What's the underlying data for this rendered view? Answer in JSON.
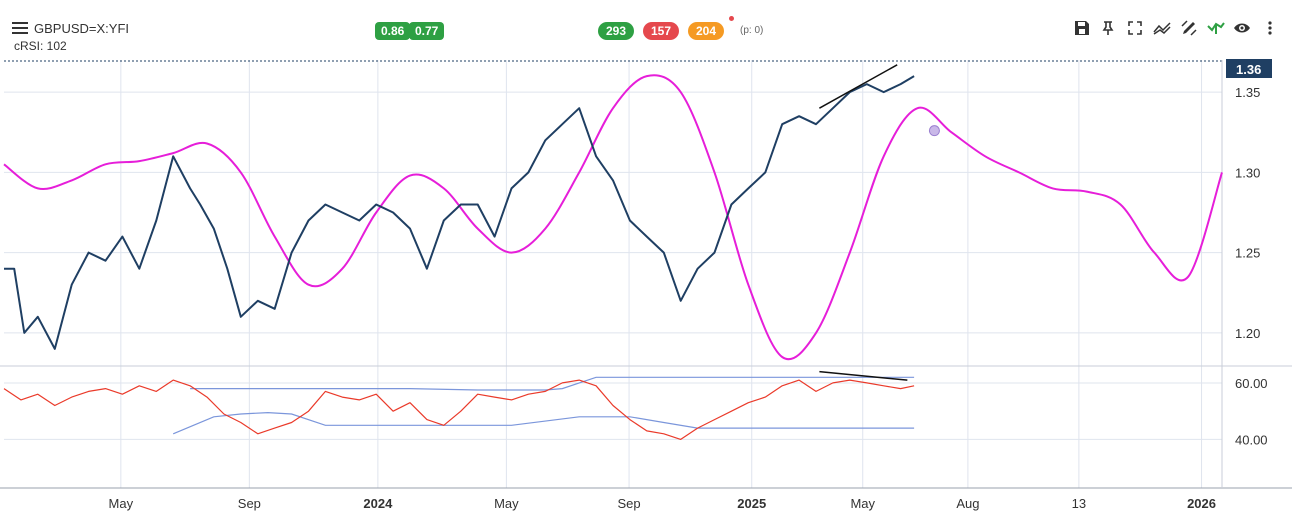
{
  "header": {
    "symbol": "GBPUSD=X:YFI",
    "indicator": "cRSI: 102",
    "badges_left": [
      "0.86",
      "0.77"
    ],
    "badges_mid": [
      "293",
      "157",
      "204"
    ],
    "p_label": "(p: 0)"
  },
  "toolbar": {
    "icons": [
      "save-icon",
      "pin-icon",
      "fullscreen-icon",
      "trend-icon",
      "draw-icon",
      "signal-icon",
      "eye-icon",
      "more-icon"
    ]
  },
  "colors": {
    "price": "#1f3f63",
    "cycle": "#e61ed9",
    "rsi": "#ea3a2a",
    "band": "#7b96db",
    "price_badge": "#1f3f63"
  },
  "chart_data": [
    {
      "type": "line",
      "title": "",
      "last_price_label": "1.36",
      "y_ticks": [
        1.35,
        1.3,
        1.25,
        1.2
      ],
      "y_tick_labels": [
        "1.35",
        "1.30",
        "1.25",
        "1.20"
      ],
      "ylim": [
        1.18,
        1.37
      ],
      "x_labels": [
        "May",
        "Sep",
        "2024",
        "May",
        "Sep",
        "2025",
        "May",
        "Aug",
        "13",
        "2026"
      ],
      "x_labels_bold": [
        false,
        false,
        true,
        false,
        false,
        true,
        false,
        false,
        false,
        true
      ],
      "series": [
        {
          "kind": "price",
          "x": [
            0,
            0.3,
            0.6,
            1.0,
            1.5,
            2.0,
            2.5,
            3.0,
            3.5,
            4.0,
            4.5,
            5.0,
            5.5,
            5.8,
            6.2,
            6.6,
            7.0,
            7.5,
            8.0,
            8.5,
            9.0,
            9.5,
            10.0,
            10.5,
            11.0,
            11.5,
            12.0,
            12.5,
            13.0,
            13.5,
            14.0,
            14.5,
            15.0,
            15.5,
            16.0,
            16.5,
            17.0,
            17.5,
            18.0,
            18.5,
            19.0,
            19.5,
            20.0,
            20.5,
            21.0,
            21.5,
            22.0,
            22.5,
            23.0,
            23.5,
            24.0,
            24.5,
            25.0,
            25.5,
            26.0,
            26.5,
            26.9
          ],
          "y": [
            1.24,
            1.24,
            1.2,
            1.21,
            1.19,
            1.23,
            1.25,
            1.245,
            1.26,
            1.24,
            1.27,
            1.31,
            1.29,
            1.28,
            1.265,
            1.24,
            1.21,
            1.22,
            1.215,
            1.25,
            1.27,
            1.28,
            1.275,
            1.27,
            1.28,
            1.275,
            1.265,
            1.24,
            1.27,
            1.28,
            1.28,
            1.26,
            1.29,
            1.3,
            1.32,
            1.33,
            1.34,
            1.31,
            1.295,
            1.27,
            1.26,
            1.25,
            1.22,
            1.24,
            1.25,
            1.28,
            1.29,
            1.3,
            1.33,
            1.335,
            1.33,
            1.34,
            1.35,
            1.355,
            1.35,
            1.355,
            1.36
          ]
        },
        {
          "kind": "cycle",
          "x": [
            0,
            1,
            2,
            3,
            4,
            5,
            6,
            7,
            8,
            9,
            10,
            11,
            12,
            13,
            14,
            15,
            16,
            17,
            18,
            19,
            20,
            21,
            22,
            23,
            24,
            25,
            26,
            27,
            28,
            29,
            30,
            31,
            32,
            33,
            34,
            35,
            36
          ],
          "y": [
            1.305,
            1.29,
            1.295,
            1.305,
            1.307,
            1.312,
            1.318,
            1.3,
            1.26,
            1.23,
            1.24,
            1.275,
            1.298,
            1.29,
            1.265,
            1.25,
            1.265,
            1.3,
            1.34,
            1.36,
            1.35,
            1.3,
            1.23,
            1.185,
            1.2,
            1.25,
            1.31,
            1.34,
            1.325,
            1.31,
            1.3,
            1.29,
            1.288,
            1.28,
            1.25,
            1.235,
            1.3
          ]
        }
      ],
      "marker": {
        "x": 27.5,
        "y": 1.326
      }
    },
    {
      "type": "line",
      "title": "",
      "y_ticks": [
        60,
        40
      ],
      "y_tick_labels": [
        "60.00",
        "40.00"
      ],
      "ylim": [
        32,
        66
      ],
      "series": [
        {
          "kind": "rsi",
          "x": [
            0,
            0.5,
            1.0,
            1.5,
            2.0,
            2.5,
            3.0,
            3.5,
            4.0,
            4.5,
            5.0,
            5.5,
            6.0,
            6.5,
            7.0,
            7.5,
            8.0,
            8.5,
            9.0,
            9.5,
            10.0,
            10.5,
            11.0,
            11.5,
            12.0,
            12.5,
            13.0,
            13.5,
            14.0,
            14.5,
            15.0,
            15.5,
            16.0,
            16.5,
            17.0,
            17.5,
            18.0,
            18.5,
            19.0,
            19.5,
            20.0,
            20.5,
            21.0,
            21.5,
            22.0,
            22.5,
            23.0,
            23.5,
            24.0,
            24.5,
            25.0,
            25.5,
            26.0,
            26.5,
            26.9
          ],
          "y": [
            58,
            54,
            56,
            52,
            55,
            57,
            58,
            56,
            59,
            57,
            61,
            59,
            55,
            49,
            46,
            42,
            44,
            46,
            50,
            57,
            55,
            54,
            56,
            50,
            53,
            47,
            45,
            50,
            56,
            55,
            54,
            56,
            57,
            60,
            61,
            59,
            52,
            47,
            43,
            42,
            40,
            44,
            47,
            50,
            53,
            55,
            59,
            61,
            57,
            60,
            61,
            60,
            59,
            58,
            59
          ]
        },
        {
          "kind": "upper_band",
          "x": [
            5.5,
            8,
            10,
            12,
            14,
            16,
            16.5,
            17.5,
            20,
            22,
            24,
            26,
            26.9
          ],
          "y": [
            58,
            58,
            58,
            58,
            57.5,
            57.5,
            58,
            62,
            62,
            62,
            62,
            62,
            62
          ]
        },
        {
          "kind": "lower_band",
          "x": [
            5,
            5.6,
            6.2,
            7.0,
            7.8,
            8.5,
            9.5,
            11,
            13,
            15,
            17,
            18.5,
            19.5,
            20.5,
            22,
            24,
            26,
            26.9
          ],
          "y": [
            42,
            45,
            48,
            49,
            49.5,
            49,
            45,
            45,
            45,
            45,
            48,
            48,
            46,
            44,
            44,
            44,
            44,
            44
          ]
        }
      ]
    }
  ]
}
